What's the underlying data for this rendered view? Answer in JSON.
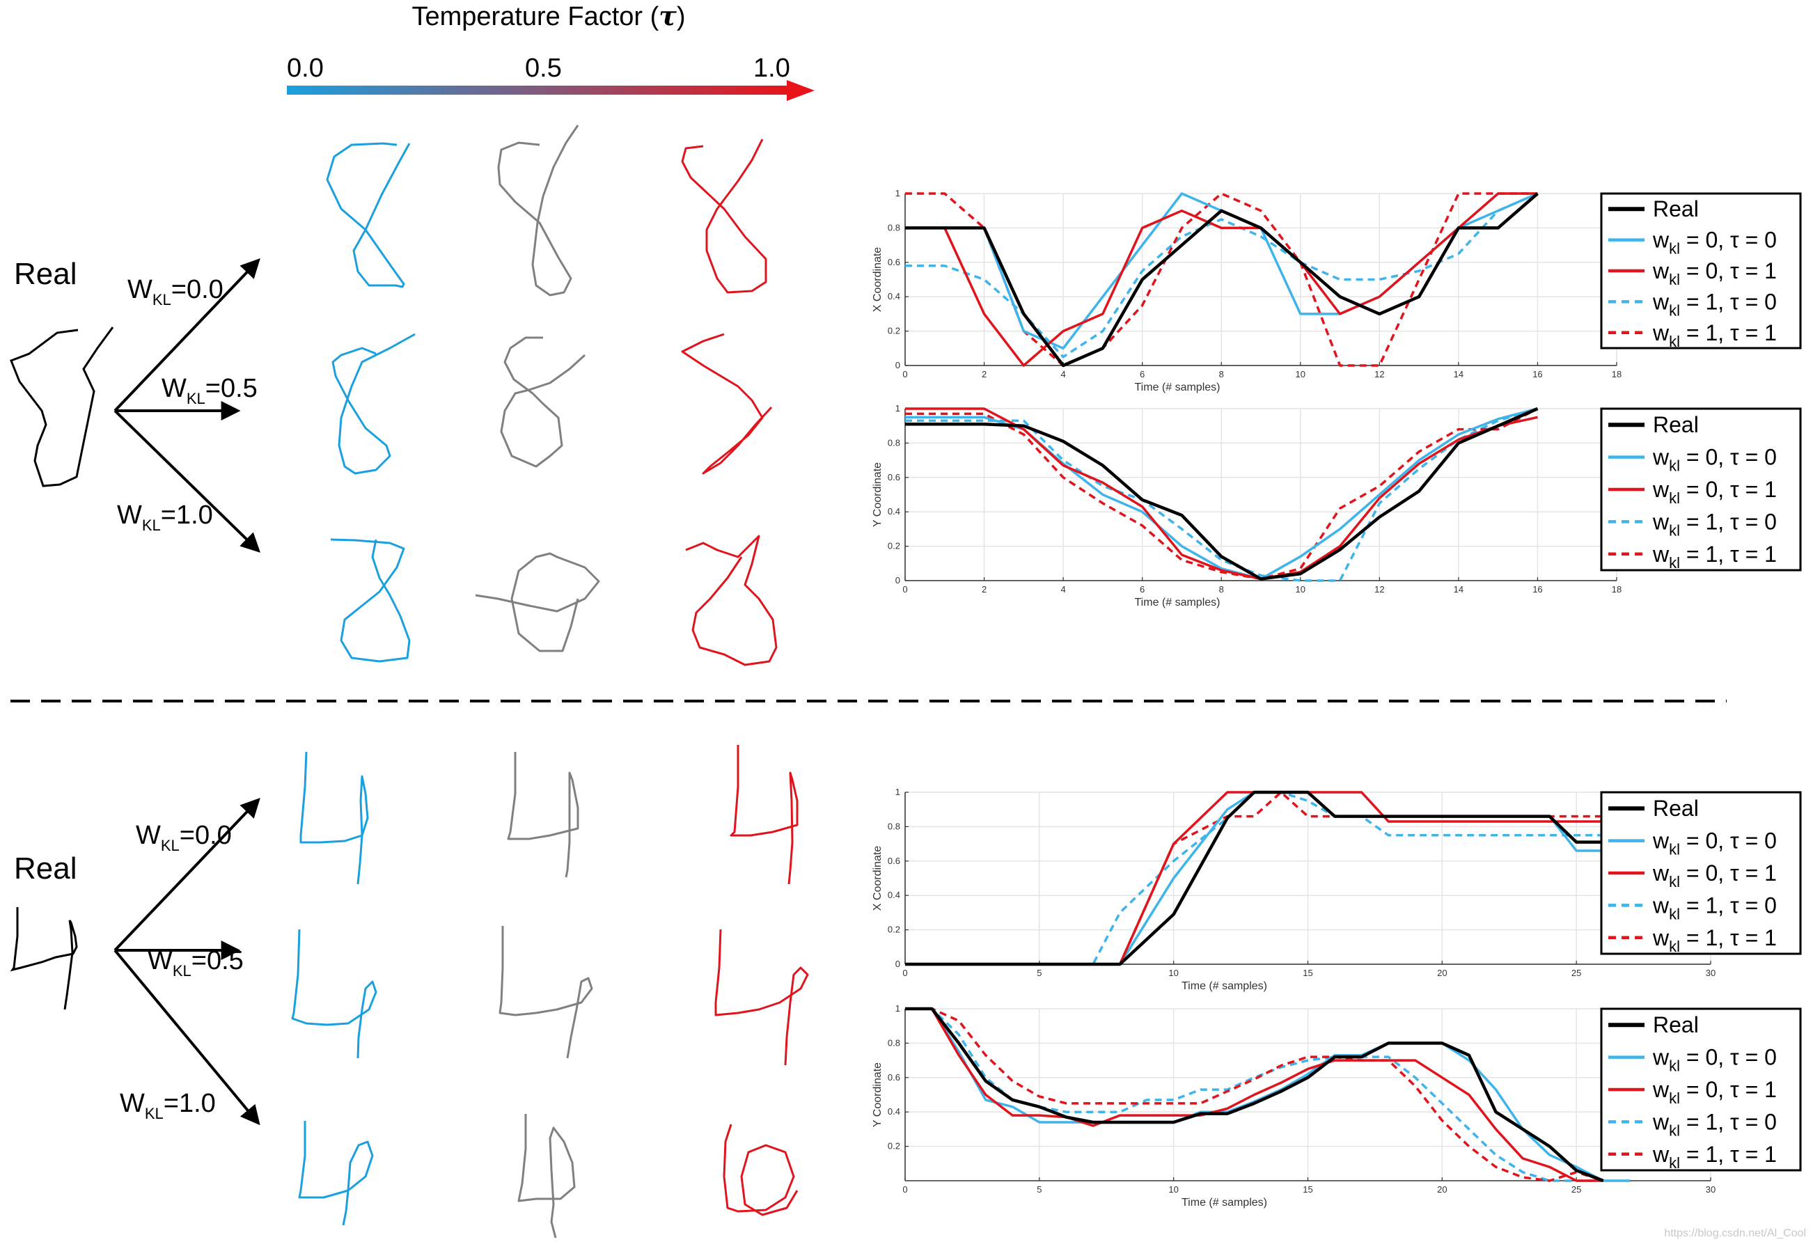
{
  "header": {
    "title": "Temperature Factor (",
    "tau_symbol": "τ",
    "title_close": ")",
    "ticks": [
      "0.0",
      "0.5",
      "1.0"
    ],
    "gradient_start": "#1aa0df",
    "gradient_end": "#e8141a"
  },
  "colors": {
    "blue": "#1aa0df",
    "gray": "#808080",
    "red": "#e0141c",
    "black": "#000000"
  },
  "panels": [
    {
      "real_label": "Real",
      "arrows": [
        {
          "label_main": "W",
          "label_sub": "KL",
          "label_value": "=0.0"
        },
        {
          "label_main": "W",
          "label_sub": "KL",
          "label_value": "=0.5"
        },
        {
          "label_main": "W",
          "label_sub": "KL",
          "label_value": "=1.0"
        }
      ]
    },
    {
      "real_label": "Real",
      "arrows": [
        {
          "label_main": "W",
          "label_sub": "KL",
          "label_value": "=0.0"
        },
        {
          "label_main": "W",
          "label_sub": "KL",
          "label_value": "=0.5"
        },
        {
          "label_main": "W",
          "label_sub": "KL",
          "label_value": "=1.0"
        }
      ]
    }
  ],
  "watermark": "https://blog.csdn.net/Al_Cool",
  "chart_data": [
    {
      "id": "top-x",
      "type": "line",
      "title": "",
      "xlabel": "Time (# samples)",
      "ylabel": "X Coordinate",
      "xlim": [
        0,
        18
      ],
      "ylim": [
        0,
        1
      ],
      "xticks": [
        0,
        2,
        4,
        6,
        8,
        10,
        12,
        14,
        16,
        18
      ],
      "yticks": [
        0,
        0.2,
        0.4,
        0.6,
        0.8,
        1
      ],
      "grid": true,
      "legend_position": "top-right",
      "series": [
        {
          "name": "Real",
          "style": "solid",
          "color": "#000000",
          "x": [
            0,
            1,
            2,
            3,
            4,
            5,
            6,
            7,
            8,
            9,
            10,
            11,
            12,
            13,
            14,
            15,
            16
          ],
          "y": [
            0.8,
            0.8,
            0.8,
            0.3,
            0,
            0.1,
            0.5,
            0.7,
            0.9,
            0.8,
            0.6,
            0.4,
            0.3,
            0.4,
            0.8,
            0.8,
            1
          ]
        },
        {
          "name": "w_kl = 0, τ = 0",
          "style": "solid",
          "color": "#3fb4ea",
          "x": [
            0,
            1,
            2,
            3,
            4,
            5,
            6,
            7,
            8,
            9,
            10,
            11,
            12,
            13,
            14,
            15,
            16
          ],
          "y": [
            0.8,
            0.8,
            0.8,
            0.2,
            0.1,
            0.4,
            0.7,
            1,
            0.9,
            0.8,
            0.3,
            0.3,
            0.4,
            0.6,
            0.8,
            0.9,
            1
          ]
        },
        {
          "name": "w_kl = 0, τ = 1",
          "style": "solid",
          "color": "#e0141c",
          "x": [
            0,
            1,
            2,
            3,
            4,
            5,
            6,
            7,
            8,
            9,
            10,
            11,
            12,
            13,
            14,
            15,
            16
          ],
          "y": [
            0.8,
            0.8,
            0.3,
            0,
            0.2,
            0.3,
            0.8,
            0.9,
            0.8,
            0.8,
            0.6,
            0.3,
            0.4,
            0.6,
            0.8,
            1,
            1
          ]
        },
        {
          "name": "w_kl = 1, τ = 0",
          "style": "dashed",
          "color": "#3fb4ea",
          "x": [
            0,
            1,
            2,
            3,
            4,
            5,
            6,
            7,
            8,
            9,
            10,
            11,
            12,
            13,
            14,
            15,
            16
          ],
          "y": [
            0.58,
            0.58,
            0.5,
            0.3,
            0.05,
            0.2,
            0.55,
            0.75,
            0.85,
            0.75,
            0.6,
            0.5,
            0.5,
            0.55,
            0.65,
            0.9,
            1
          ]
        },
        {
          "name": "w_kl = 1, τ = 1",
          "style": "dashed",
          "color": "#e0141c",
          "x": [
            0,
            1,
            2,
            3,
            4,
            5,
            6,
            7,
            8,
            9,
            10,
            11,
            12,
            13,
            14,
            15,
            16
          ],
          "y": [
            1,
            1,
            0.8,
            0.2,
            0,
            0.1,
            0.35,
            0.8,
            1,
            0.9,
            0.6,
            0,
            0,
            0.5,
            1,
            1,
            1
          ]
        }
      ]
    },
    {
      "id": "top-y",
      "type": "line",
      "title": "",
      "xlabel": "Time (# samples)",
      "ylabel": "Y Coordinate",
      "xlim": [
        0,
        18
      ],
      "ylim": [
        0,
        1
      ],
      "xticks": [
        0,
        2,
        4,
        6,
        8,
        10,
        12,
        14,
        16,
        18
      ],
      "yticks": [
        0,
        0.2,
        0.4,
        0.6,
        0.8,
        1
      ],
      "grid": true,
      "legend_position": "top-right",
      "series": [
        {
          "name": "Real",
          "style": "solid",
          "color": "#000000",
          "x": [
            0,
            1,
            2,
            3,
            4,
            5,
            6,
            7,
            8,
            9,
            10,
            11,
            12,
            13,
            14,
            15,
            16
          ],
          "y": [
            0.91,
            0.91,
            0.91,
            0.9,
            0.81,
            0.67,
            0.47,
            0.38,
            0.14,
            0.01,
            0.04,
            0.18,
            0.37,
            0.52,
            0.8,
            0.9,
            1
          ]
        },
        {
          "name": "w_kl = 0, τ = 0",
          "style": "solid",
          "color": "#3fb4ea",
          "x": [
            0,
            1,
            2,
            3,
            4,
            5,
            6,
            7,
            8,
            9,
            10,
            11,
            12,
            13,
            14,
            15,
            16
          ],
          "y": [
            0.95,
            0.95,
            0.95,
            0.88,
            0.68,
            0.5,
            0.4,
            0.2,
            0.07,
            0.01,
            0.14,
            0.3,
            0.5,
            0.7,
            0.85,
            0.94,
            1
          ]
        },
        {
          "name": "w_kl = 0, τ = 1",
          "style": "solid",
          "color": "#e0141c",
          "x": [
            0,
            1,
            2,
            3,
            4,
            5,
            6,
            7,
            8,
            9,
            10,
            11,
            12,
            13,
            14,
            15,
            16
          ],
          "y": [
            1,
            1,
            1,
            0.88,
            0.67,
            0.57,
            0.43,
            0.15,
            0.06,
            0.01,
            0.05,
            0.2,
            0.48,
            0.68,
            0.82,
            0.9,
            0.95
          ]
        },
        {
          "name": "w_kl = 1, τ = 0",
          "style": "dashed",
          "color": "#3fb4ea",
          "x": [
            0,
            1,
            2,
            3,
            4,
            5,
            6,
            7,
            8,
            9,
            10,
            10.5,
            11,
            12,
            13,
            14,
            15,
            16
          ],
          "y": [
            0.93,
            0.93,
            0.93,
            0.93,
            0.7,
            0.55,
            0.47,
            0.3,
            0.12,
            0.03,
            0,
            0,
            0,
            0.45,
            0.65,
            0.82,
            0.93,
            1
          ]
        },
        {
          "name": "w_kl = 1, τ = 1",
          "style": "dashed",
          "color": "#e0141c",
          "x": [
            0,
            1,
            2,
            3,
            4,
            5,
            6,
            7,
            8,
            9,
            10,
            11,
            12,
            13,
            14,
            15,
            16
          ],
          "y": [
            0.97,
            0.97,
            0.97,
            0.85,
            0.6,
            0.45,
            0.32,
            0.12,
            0.05,
            0.01,
            0.07,
            0.42,
            0.55,
            0.75,
            0.88,
            0.88,
            1
          ]
        }
      ]
    },
    {
      "id": "bottom-x",
      "type": "line",
      "title": "",
      "xlabel": "Time (# samples)",
      "ylabel": "X Coordinate",
      "xlim": [
        0,
        30
      ],
      "ylim": [
        0,
        1
      ],
      "xticks": [
        0,
        5,
        10,
        15,
        20,
        25,
        30
      ],
      "yticks": [
        0,
        0.2,
        0.4,
        0.6,
        0.8,
        1
      ],
      "grid": true,
      "legend_position": "top-right",
      "series": [
        {
          "name": "Real",
          "style": "solid",
          "color": "#000000",
          "x": [
            0,
            8,
            10,
            12,
            13,
            14,
            15,
            16,
            24,
            25,
            26
          ],
          "y": [
            0,
            0,
            0.29,
            0.85,
            1,
            1,
            1,
            0.86,
            0.86,
            0.71,
            0.71
          ]
        },
        {
          "name": "w_kl = 0, τ = 0",
          "style": "solid",
          "color": "#3fb4ea",
          "x": [
            0,
            7,
            8,
            10,
            12,
            13,
            14,
            15,
            16,
            17,
            24,
            25,
            26
          ],
          "y": [
            0,
            0,
            0,
            0.5,
            0.9,
            1,
            1,
            1,
            0.86,
            0.86,
            0.86,
            0.66,
            0.66
          ]
        },
        {
          "name": "w_kl = 0, τ = 1",
          "style": "solid",
          "color": "#e0141c",
          "x": [
            0,
            7,
            8,
            10,
            12,
            13,
            14,
            15,
            16,
            17,
            18,
            26
          ],
          "y": [
            0,
            0,
            0,
            0.7,
            1,
            1,
            1,
            1,
            1,
            1,
            0.83,
            0.83
          ]
        },
        {
          "name": "w_kl = 1, τ = 0",
          "style": "dashed",
          "color": "#3fb4ea",
          "x": [
            0,
            7,
            8,
            10,
            12,
            13,
            14,
            15,
            16,
            17,
            18,
            24,
            26
          ],
          "y": [
            0,
            0,
            0.3,
            0.6,
            0.85,
            1,
            1,
            0.95,
            0.86,
            0.86,
            0.75,
            0.75,
            0.75
          ]
        },
        {
          "name": "w_kl = 1, τ = 1",
          "style": "dashed",
          "color": "#e0141c",
          "x": [
            0,
            7,
            8,
            10,
            12,
            13,
            14,
            15,
            16,
            24,
            26
          ],
          "y": [
            0,
            0,
            0,
            0.7,
            0.86,
            0.86,
            1,
            0.86,
            0.86,
            0.86,
            0.86
          ]
        }
      ]
    },
    {
      "id": "bottom-y",
      "type": "line",
      "title": "",
      "xlabel": "Time (# samples)",
      "ylabel": "Y Coordinate",
      "xlim": [
        0,
        30
      ],
      "ylim": [
        0,
        1
      ],
      "xticks": [
        0,
        5,
        10,
        15,
        20,
        25,
        30
      ],
      "yticks": [
        0.2,
        0.4,
        0.6,
        0.8,
        1
      ],
      "grid": true,
      "legend_position": "top-right",
      "series": [
        {
          "name": "Real",
          "style": "solid",
          "color": "#000000",
          "x": [
            0,
            1,
            2,
            3,
            4,
            5,
            6,
            7,
            8,
            9,
            10,
            11,
            12,
            13,
            14,
            15,
            16,
            17,
            18,
            19,
            20,
            21,
            22,
            23,
            24,
            25,
            26
          ],
          "y": [
            1,
            1,
            0.8,
            0.58,
            0.47,
            0.43,
            0.37,
            0.34,
            0.34,
            0.34,
            0.34,
            0.39,
            0.39,
            0.45,
            0.52,
            0.6,
            0.72,
            0.72,
            0.8,
            0.8,
            0.8,
            0.73,
            0.4,
            0.3,
            0.2,
            0.06,
            0
          ]
        },
        {
          "name": "w_kl = 0, τ = 0",
          "style": "solid",
          "color": "#3fb4ea",
          "x": [
            0,
            1,
            2,
            3,
            4,
            5,
            6,
            7,
            8,
            9,
            10,
            11,
            12,
            13,
            14,
            15,
            16,
            17,
            18,
            19,
            20,
            21,
            22,
            23,
            24,
            25,
            26,
            27
          ],
          "y": [
            1,
            1,
            0.75,
            0.47,
            0.43,
            0.34,
            0.34,
            0.34,
            0.34,
            0.34,
            0.34,
            0.4,
            0.4,
            0.46,
            0.53,
            0.62,
            0.73,
            0.73,
            0.8,
            0.8,
            0.8,
            0.7,
            0.53,
            0.3,
            0.15,
            0.08,
            0,
            0
          ]
        },
        {
          "name": "w_kl = 0, τ = 1",
          "style": "solid",
          "color": "#e0141c",
          "x": [
            0,
            1,
            2,
            3,
            4,
            5,
            6,
            7,
            8,
            9,
            10,
            11,
            12,
            13,
            14,
            15,
            16,
            17,
            18,
            19,
            20,
            21,
            22,
            23,
            24,
            25,
            26
          ],
          "y": [
            1,
            1,
            0.73,
            0.5,
            0.38,
            0.38,
            0.37,
            0.32,
            0.38,
            0.38,
            0.38,
            0.38,
            0.42,
            0.5,
            0.57,
            0.65,
            0.7,
            0.7,
            0.7,
            0.7,
            0.6,
            0.5,
            0.3,
            0.13,
            0.08,
            0,
            0
          ]
        },
        {
          "name": "w_kl = 1, τ = 0",
          "style": "dashed",
          "color": "#3fb4ea",
          "x": [
            0,
            1,
            2,
            3,
            4,
            5,
            6,
            7,
            8,
            9,
            10,
            11,
            12,
            13,
            14,
            15,
            16,
            17,
            18,
            19,
            20,
            21,
            22,
            23,
            24,
            25,
            26
          ],
          "y": [
            1,
            1,
            0.85,
            0.6,
            0.47,
            0.43,
            0.4,
            0.4,
            0.4,
            0.47,
            0.47,
            0.53,
            0.53,
            0.6,
            0.66,
            0.7,
            0.72,
            0.72,
            0.72,
            0.6,
            0.45,
            0.3,
            0.15,
            0.05,
            0,
            0,
            0
          ]
        },
        {
          "name": "w_kl = 1, τ = 1",
          "style": "dashed",
          "color": "#e0141c",
          "x": [
            0,
            1,
            2,
            3,
            4,
            5,
            6,
            7,
            8,
            9,
            10,
            11,
            12,
            13,
            14,
            15,
            16,
            17,
            18,
            19,
            20,
            21,
            22,
            23,
            24,
            25,
            26
          ],
          "y": [
            1,
            1,
            0.93,
            0.73,
            0.58,
            0.49,
            0.45,
            0.45,
            0.45,
            0.45,
            0.45,
            0.45,
            0.52,
            0.59,
            0.67,
            0.72,
            0.72,
            0.7,
            0.7,
            0.55,
            0.35,
            0.2,
            0.08,
            0.02,
            0,
            0.05,
            0
          ]
        }
      ]
    }
  ]
}
